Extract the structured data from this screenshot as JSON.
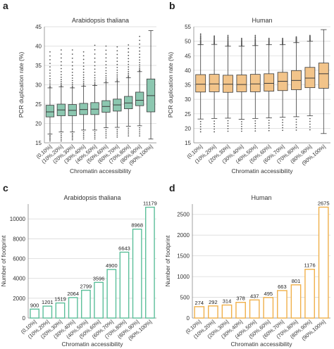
{
  "panels": [
    {
      "letter": "a",
      "title": "Arabidopsis thaliana"
    },
    {
      "letter": "b",
      "title": "Human"
    },
    {
      "letter": "c",
      "title": "Arabidopsis thaliana"
    },
    {
      "letter": "d",
      "title": "Human"
    }
  ],
  "chart_data": [
    {
      "type": "box",
      "title": "Arabidopsis thaliana",
      "xlabel": "Chromatin accessibility",
      "ylabel": "PCR duplication rate (%)",
      "ylim": [
        15,
        45
      ],
      "yticks": [
        15,
        20,
        25,
        30,
        35,
        40,
        45
      ],
      "grid": true,
      "color": "#8cc7b0",
      "edge": "#3a3a3a",
      "categories": [
        "(0,10%]",
        "(10%,20%]",
        "(20%,30%]",
        "(30%,40%]",
        "(40%,50%]",
        "(50%,60%]",
        "(60%,70%]",
        "(70%,80%]",
        "(80%,90%]",
        "(90%,100%]"
      ],
      "boxes": [
        {
          "q1": 21.7,
          "median": 23.0,
          "q3": 24.7,
          "whislo": 17.3,
          "whishi": 29.2,
          "outlier_hi": 38.5,
          "outlier_lo": 15.5
        },
        {
          "q1": 22.0,
          "median": 23.5,
          "q3": 25.0,
          "whislo": 17.8,
          "whishi": 29.5,
          "outlier_hi": 39.0,
          "outlier_lo": 15.5
        },
        {
          "q1": 22.0,
          "median": 23.4,
          "q3": 24.9,
          "whislo": 17.8,
          "whishi": 29.2,
          "outlier_hi": 39.0,
          "outlier_lo": 15.8
        },
        {
          "q1": 22.3,
          "median": 23.6,
          "q3": 25.2,
          "whislo": 18.3,
          "whishi": 29.6,
          "outlier_hi": 38.5,
          "outlier_lo": 16.0
        },
        {
          "q1": 22.3,
          "median": 23.7,
          "q3": 25.4,
          "whislo": 18.3,
          "whishi": 29.8,
          "outlier_hi": 40.2,
          "outlier_lo": 16.0
        },
        {
          "q1": 22.9,
          "median": 24.4,
          "q3": 25.9,
          "whislo": 18.9,
          "whishi": 30.5,
          "outlier_hi": 40.0,
          "outlier_lo": 16.3
        },
        {
          "q1": 23.2,
          "median": 24.8,
          "q3": 26.3,
          "whislo": 19.0,
          "whishi": 30.8,
          "outlier_hi": 39.8,
          "outlier_lo": 16.5
        },
        {
          "q1": 23.8,
          "median": 25.3,
          "q3": 27.0,
          "whislo": 19.3,
          "whishi": 31.8,
          "outlier_hi": 40.3,
          "outlier_lo": 16.8
        },
        {
          "q1": 24.6,
          "median": 26.0,
          "q3": 28.1,
          "whislo": 19.4,
          "whishi": 33.4,
          "outlier_hi": 42.5,
          "outlier_lo": 16.8
        },
        {
          "q1": 23.0,
          "median": 27.2,
          "q3": 31.5,
          "whislo": 16.0,
          "whishi": 44.0,
          "outlier_hi": null,
          "outlier_lo": null
        }
      ]
    },
    {
      "type": "box",
      "title": "Human",
      "xlabel": "Chromatin accessibility",
      "ylabel": "PCR duplication rate (%)",
      "ylim": [
        15,
        55
      ],
      "yticks": [
        15,
        20,
        25,
        30,
        35,
        40,
        45,
        50,
        55
      ],
      "grid": true,
      "color": "#f2c48a",
      "edge": "#3a3a3a",
      "categories": [
        "(0,10%]",
        "(10%,20%]",
        "(20%,30%]",
        "(30%,40%]",
        "(40%,50%]",
        "(50%,60%]",
        "(60%,70%]",
        "(70%,80%]",
        "(80%,90%]",
        "(90%,100%]"
      ],
      "boxes": [
        {
          "q1": 32.5,
          "median": 35.2,
          "q3": 38.5,
          "whislo": 23.2,
          "whishi": 48.8,
          "outlier_hi": 52.5,
          "outlier_lo": 18.8
        },
        {
          "q1": 32.6,
          "median": 35.3,
          "q3": 38.6,
          "whislo": 23.4,
          "whishi": 48.9,
          "outlier_hi": 51.8,
          "outlier_lo": 18.8
        },
        {
          "q1": 32.4,
          "median": 35.2,
          "q3": 38.3,
          "whislo": 23.5,
          "whishi": 48.3,
          "outlier_hi": 52.0,
          "outlier_lo": 19.0
        },
        {
          "q1": 32.6,
          "median": 35.1,
          "q3": 38.4,
          "whislo": 23.1,
          "whishi": 48.3,
          "outlier_hi": 51.0,
          "outlier_lo": 19.0
        },
        {
          "q1": 32.6,
          "median": 35.3,
          "q3": 38.6,
          "whislo": 23.4,
          "whishi": 48.5,
          "outlier_hi": 52.0,
          "outlier_lo": 19.1
        },
        {
          "q1": 32.8,
          "median": 35.5,
          "q3": 38.8,
          "whislo": 23.6,
          "whishi": 48.8,
          "outlier_hi": 51.0,
          "outlier_lo": 19.2
        },
        {
          "q1": 33.0,
          "median": 36.2,
          "q3": 39.3,
          "whislo": 23.8,
          "whishi": 48.8,
          "outlier_hi": 51.0,
          "outlier_lo": 19.3
        },
        {
          "q1": 33.3,
          "median": 36.5,
          "q3": 39.9,
          "whislo": 24.0,
          "whishi": 49.5,
          "outlier_hi": 51.5,
          "outlier_lo": 19.4
        },
        {
          "q1": 34.0,
          "median": 37.3,
          "q3": 41.0,
          "whislo": 24.3,
          "whishi": 50.0,
          "outlier_hi": 52.0,
          "outlier_lo": 19.5
        },
        {
          "q1": 33.8,
          "median": 38.8,
          "q3": 42.5,
          "whislo": 18.2,
          "whishi": 54.0,
          "outlier_hi": null,
          "outlier_lo": null
        }
      ]
    },
    {
      "type": "bar",
      "title": "Arabidopsis thaliana",
      "xlabel": "Chromatin accessibility",
      "ylabel": "Number of footprint",
      "ylim": [
        0,
        11500
      ],
      "yticks": [
        0,
        2000,
        4000,
        6000,
        8000,
        10000
      ],
      "grid": true,
      "color": "#5cbf9a",
      "categories": [
        "(0,10%]",
        "(10%,20%]",
        "(20%,30%]",
        "(30%,40%]",
        "(40%,50%]",
        "(50%,60%]",
        "(60%,70%]",
        "(70%,80%]",
        "(80%,90%]",
        "(90%,100%]"
      ],
      "values": [
        900,
        1201,
        1519,
        2064,
        2799,
        3596,
        4900,
        6643,
        8968,
        11179
      ]
    },
    {
      "type": "bar",
      "title": "Human",
      "xlabel": "Chromatin accessibility",
      "ylabel": "Number of footprint",
      "ylim": [
        0,
        2750
      ],
      "yticks": [
        0,
        500,
        1000,
        1500,
        2000,
        2500
      ],
      "grid": true,
      "color": "#f0b04a",
      "categories": [
        "(0,10%]",
        "(10%,20%]",
        "(20%,30%]",
        "(30%,40%]",
        "(40%,50%]",
        "(50%,60%]",
        "(60%,70%]",
        "(70%,80%]",
        "(80%,90%]",
        "(90%,100%]"
      ],
      "values": [
        274,
        292,
        314,
        378,
        437,
        495,
        663,
        801,
        1176,
        2675
      ]
    }
  ]
}
